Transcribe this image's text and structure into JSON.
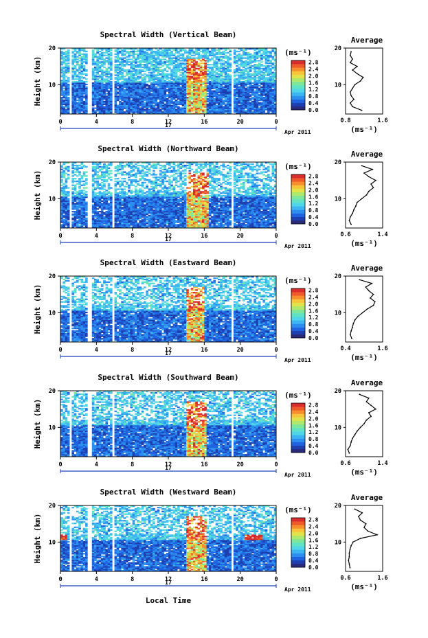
{
  "figure": {
    "date_label": "17",
    "month_year": "Apr 2011",
    "xlabel": "Local Time",
    "ylabel": "Height (km)",
    "unit": "(ms⁻¹)",
    "avg_title": "Average",
    "avg_xlabel": "(ms⁻¹)"
  },
  "colors": {
    "scale": [
      "#2a2a7a",
      "#1e3fb0",
      "#1f63e0",
      "#2c8ff0",
      "#3db5f3",
      "#4fd6e8",
      "#5fe3c4",
      "#7ee69a",
      "#aee86c",
      "#e2e34b",
      "#f7c43a",
      "#f88f2e",
      "#ef5a2a",
      "#d92c2c"
    ]
  },
  "chart_data": [
    {
      "type": "heatmap",
      "title": "Spectral Width (Vertical Beam)",
      "xlabel": "Local Time",
      "ylabel": "Height (km)",
      "xlim": [
        0,
        24
      ],
      "ylim": [
        2,
        20
      ],
      "xticks": [
        "0",
        "4",
        "8",
        "12",
        "16",
        "20",
        "0"
      ],
      "yticks": [
        "20",
        "10"
      ],
      "colorbar_ticks": [
        "2.8",
        "2.4",
        "2.0",
        "1.6",
        "1.2",
        "0.8",
        "0.4",
        "0.0"
      ],
      "colorbar_range": [
        0.0,
        2.9
      ],
      "gaps_hours": [
        [
          1.0,
          1.3
        ],
        [
          3.1,
          3.4
        ],
        [
          5.7,
          6.0
        ],
        [
          18.9,
          19.3
        ]
      ],
      "turbulence_hours": [
        14.0,
        16.2
      ],
      "average": {
        "title": "Average",
        "xlabel": "(ms⁻¹)",
        "xlim": [
          0.8,
          1.6
        ],
        "xticks": [
          "0.8",
          "1.6"
        ],
        "yticks": [
          "20",
          "10"
        ],
        "height": [
          3,
          4,
          5,
          6,
          7,
          8,
          9,
          10,
          11,
          12,
          13,
          14,
          15,
          16,
          17,
          18,
          19
        ],
        "value": [
          1.15,
          0.95,
          0.9,
          0.98,
          0.92,
          0.9,
          0.95,
          1.0,
          1.12,
          1.18,
          1.05,
          0.95,
          1.05,
          0.9,
          0.95,
          0.9,
          0.92
        ]
      }
    },
    {
      "type": "heatmap",
      "title": "Spectral Width (Northward Beam)",
      "xlabel": "Local Time",
      "ylabel": "Height (km)",
      "xlim": [
        0,
        24
      ],
      "ylim": [
        2,
        20
      ],
      "xticks": [
        "0",
        "4",
        "8",
        "12",
        "16",
        "20",
        "0"
      ],
      "yticks": [
        "20",
        "10"
      ],
      "colorbar_ticks": [
        "2.8",
        "2.4",
        "2.0",
        "1.6",
        "1.2",
        "0.8",
        "0.4",
        "0.0"
      ],
      "colorbar_range": [
        0.0,
        2.9
      ],
      "gaps_hours": [
        [
          1.0,
          1.3
        ],
        [
          3.1,
          3.4
        ],
        [
          5.7,
          6.0
        ],
        [
          18.9,
          19.3
        ]
      ],
      "turbulence_hours": [
        14.0,
        16.5
      ],
      "average": {
        "title": "Average",
        "xlabel": "(ms⁻¹)",
        "xlim": [
          0.6,
          1.4
        ],
        "xticks": [
          "0.6",
          "1.4"
        ],
        "yticks": [
          "20",
          "10"
        ],
        "height": [
          3,
          4,
          5,
          6,
          7,
          8,
          9,
          10,
          11,
          12,
          13,
          14,
          15,
          16,
          17,
          18,
          19
        ],
        "value": [
          0.72,
          0.68,
          0.7,
          0.75,
          0.78,
          0.82,
          0.85,
          0.95,
          1.05,
          1.1,
          1.2,
          1.15,
          1.25,
          1.1,
          1.0,
          1.18,
          0.95
        ]
      }
    },
    {
      "type": "heatmap",
      "title": "Spectral Width (Eastward Beam)",
      "xlabel": "Local Time",
      "ylabel": "Height (km)",
      "xlim": [
        0,
        24
      ],
      "ylim": [
        2,
        20
      ],
      "xticks": [
        "0",
        "4",
        "8",
        "12",
        "16",
        "20",
        "0"
      ],
      "yticks": [
        "20",
        "10"
      ],
      "colorbar_ticks": [
        "2.8",
        "2.4",
        "2.0",
        "1.6",
        "1.2",
        "0.8",
        "0.4",
        "0.0"
      ],
      "colorbar_range": [
        0.0,
        2.9
      ],
      "gaps_hours": [
        [
          1.0,
          1.3
        ],
        [
          3.1,
          3.4
        ],
        [
          5.7,
          6.0
        ],
        [
          18.9,
          19.3
        ]
      ],
      "turbulence_hours": [
        14.0,
        16.0
      ],
      "average": {
        "title": "Average",
        "xlabel": "(ms⁻¹)",
        "xlim": [
          0.4,
          1.6
        ],
        "xticks": [
          "0.4",
          "1.6"
        ],
        "yticks": [
          "20",
          "10"
        ],
        "height": [
          3,
          4,
          5,
          6,
          7,
          8,
          9,
          10,
          11,
          12,
          13,
          14,
          15,
          16,
          17,
          18,
          19
        ],
        "value": [
          0.6,
          0.55,
          0.58,
          0.62,
          0.65,
          0.7,
          0.8,
          0.95,
          1.1,
          1.3,
          1.35,
          1.2,
          1.3,
          1.15,
          1.05,
          1.25,
          0.85
        ]
      }
    },
    {
      "type": "heatmap",
      "title": "Spectral Width (Southward Beam)",
      "xlabel": "Local Time",
      "ylabel": "Height (km)",
      "xlim": [
        0,
        24
      ],
      "ylim": [
        2,
        20
      ],
      "xticks": [
        "0",
        "4",
        "8",
        "12",
        "16",
        "20",
        "0"
      ],
      "yticks": [
        "20",
        "10"
      ],
      "colorbar_ticks": [
        "2.8",
        "2.4",
        "2.0",
        "1.6",
        "1.2",
        "0.8",
        "0.4",
        "0.0"
      ],
      "colorbar_range": [
        0.0,
        2.9
      ],
      "gaps_hours": [
        [
          1.0,
          1.3
        ],
        [
          3.1,
          3.4
        ],
        [
          5.7,
          6.0
        ],
        [
          18.9,
          19.3
        ]
      ],
      "turbulence_hours": [
        14.0,
        16.3
      ],
      "average": {
        "title": "Average",
        "xlabel": "(ms⁻¹)",
        "xlim": [
          0.6,
          1.4
        ],
        "xticks": [
          "0.6",
          "1.4"
        ],
        "yticks": [
          "20",
          "10"
        ],
        "height": [
          3,
          4,
          5,
          6,
          7,
          8,
          9,
          10,
          11,
          12,
          13,
          14,
          15,
          16,
          17,
          18,
          19
        ],
        "value": [
          0.68,
          0.65,
          0.7,
          0.72,
          0.75,
          0.8,
          0.85,
          0.92,
          1.0,
          1.05,
          1.15,
          1.1,
          1.25,
          1.15,
          1.05,
          1.1,
          0.9
        ]
      }
    },
    {
      "type": "heatmap",
      "title": "Spectral Width (Westward Beam)",
      "xlabel": "Local Time",
      "ylabel": "Height (km)",
      "xlim": [
        0,
        24
      ],
      "ylim": [
        2,
        20
      ],
      "xticks": [
        "0",
        "4",
        "8",
        "12",
        "16",
        "20",
        "0"
      ],
      "yticks": [
        "20",
        "10"
      ],
      "colorbar_ticks": [
        "2.8",
        "2.4",
        "2.0",
        "1.6",
        "1.2",
        "0.8",
        "0.4",
        "0.0"
      ],
      "colorbar_range": [
        0.0,
        2.9
      ],
      "gaps_hours": [
        [
          1.0,
          1.3
        ],
        [
          3.1,
          3.4
        ],
        [
          5.7,
          6.0
        ],
        [
          18.9,
          19.3
        ]
      ],
      "turbulence_hours": [
        14.0,
        16.3
      ],
      "average": {
        "title": "Average",
        "xlabel": "(ms⁻¹)",
        "xlim": [
          0.6,
          1.6
        ],
        "xticks": [
          "0.6",
          "1.6"
        ],
        "yticks": [
          "20",
          "10"
        ],
        "height": [
          3,
          4,
          5,
          6,
          7,
          8,
          9,
          10,
          11,
          12,
          13,
          14,
          15,
          16,
          17,
          18,
          19
        ],
        "value": [
          0.72,
          0.7,
          0.68,
          0.7,
          0.7,
          0.72,
          0.75,
          0.8,
          1.0,
          1.45,
          1.2,
          1.1,
          1.15,
          1.0,
          0.95,
          1.05,
          0.85
        ]
      }
    }
  ]
}
